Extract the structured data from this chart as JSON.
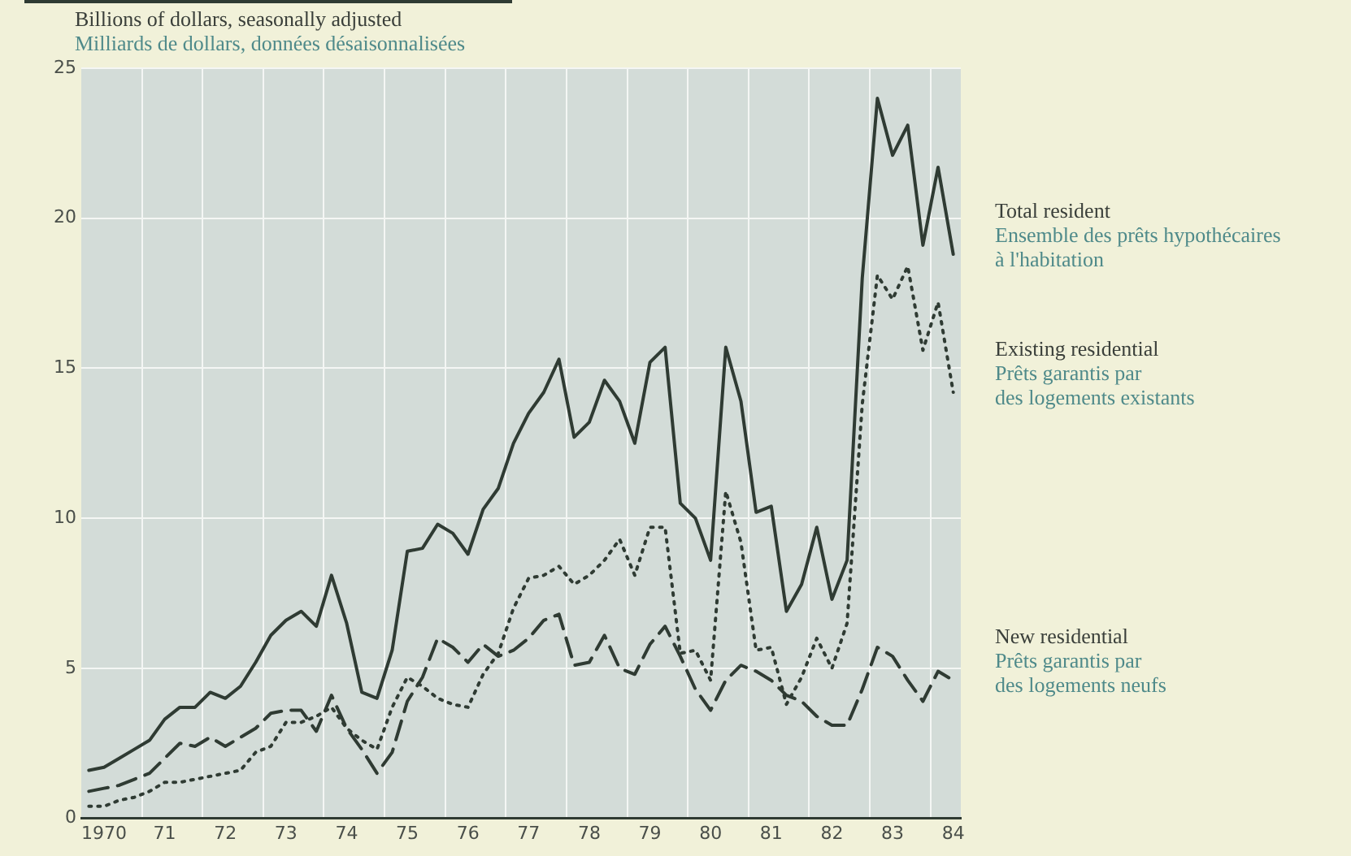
{
  "chart_data": {
    "type": "line",
    "ylabel": "Billions of dollars, seasonally adjusted\nMilliards de dollars, données désaisonnalisées",
    "categories": [
      null,
      "1970",
      null,
      null,
      null,
      "71",
      null,
      null,
      null,
      "72",
      null,
      null,
      null,
      "73",
      null,
      null,
      null,
      "74",
      null,
      null,
      null,
      "75",
      null,
      null,
      null,
      "76",
      null,
      null,
      null,
      "77",
      null,
      null,
      null,
      "78",
      null,
      null,
      null,
      "79",
      null,
      null,
      null,
      "80",
      null,
      null,
      null,
      "81",
      null,
      null,
      null,
      "82",
      null,
      null,
      null,
      "83",
      null,
      null,
      null,
      "84"
    ],
    "series": [
      {
        "name": "Total resident\nEnsemble des prêts hypothécaires\nà l'habitation",
        "color": "#2f3b33",
        "line_style": "solid",
        "values": [
          1.6,
          1.7,
          2.0,
          2.3,
          2.6,
          3.3,
          3.7,
          3.7,
          4.2,
          4.0,
          4.4,
          5.2,
          6.1,
          6.6,
          6.9,
          6.4,
          8.1,
          6.5,
          4.2,
          4.0,
          5.6,
          8.9,
          9.0,
          9.8,
          9.5,
          8.8,
          10.3,
          11.0,
          12.5,
          13.5,
          14.2,
          15.3,
          12.7,
          13.2,
          14.6,
          13.9,
          12.5,
          15.2,
          15.7,
          10.5,
          10.0,
          8.6,
          15.7,
          13.9,
          10.2,
          10.4,
          6.9,
          7.8,
          9.7,
          7.3,
          8.6,
          18.0,
          24.0,
          22.1,
          23.1,
          19.1,
          21.7,
          18.8
        ]
      },
      {
        "name": "Existing residential\nPrêts garantis par\ndes logements existants",
        "color": "#2f3b33",
        "line_style": "dotted",
        "values": [
          0.4,
          0.4,
          0.6,
          0.7,
          0.9,
          1.2,
          1.2,
          1.3,
          1.4,
          1.5,
          1.6,
          2.2,
          2.4,
          3.2,
          3.2,
          3.4,
          3.7,
          3.0,
          2.6,
          2.3,
          3.7,
          4.7,
          4.4,
          4.0,
          3.8,
          3.7,
          4.8,
          5.5,
          7.0,
          8.0,
          8.1,
          8.4,
          7.8,
          8.1,
          8.6,
          9.3,
          8.1,
          9.7,
          9.7,
          5.5,
          5.6,
          4.6,
          10.9,
          9.2,
          5.6,
          5.7,
          3.8,
          4.7,
          6.0,
          5.0,
          6.5,
          13.8,
          18.1,
          17.3,
          18.4,
          15.6,
          17.2,
          14.2
        ]
      },
      {
        "name": "New residential\nPrêts garantis par\ndes logements neufs",
        "color": "#2f3b33",
        "line_style": "dashed",
        "values": [
          0.9,
          1.0,
          1.1,
          1.3,
          1.5,
          2.0,
          2.5,
          2.4,
          2.7,
          2.4,
          2.7,
          3.0,
          3.5,
          3.6,
          3.6,
          2.9,
          4.1,
          3.0,
          2.3,
          1.5,
          2.2,
          3.9,
          4.7,
          6.0,
          5.7,
          5.2,
          5.8,
          5.4,
          5.6,
          6.0,
          6.6,
          6.8,
          5.1,
          5.2,
          6.1,
          5.0,
          4.8,
          5.8,
          6.4,
          5.4,
          4.3,
          3.6,
          4.6,
          5.1,
          4.9,
          4.6,
          4.1,
          3.9,
          3.4,
          3.1,
          3.1,
          4.3,
          5.7,
          5.4,
          4.6,
          3.9,
          4.9,
          4.6
        ]
      }
    ],
    "ylim": [
      0,
      25
    ],
    "yticks": [
      0,
      5,
      10,
      15,
      20,
      25
    ],
    "grid": true,
    "legend": false,
    "marker": "none"
  }
}
